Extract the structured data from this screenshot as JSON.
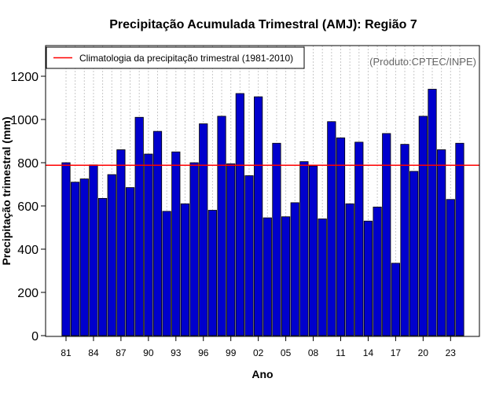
{
  "chart_data": {
    "type": "bar",
    "title": "Precipitação Acumulada Trimestral (AMJ): Região 7",
    "xlabel": "Ano",
    "ylabel": "Precipitação trimestral (mm)",
    "ylim": [
      0,
      1330
    ],
    "yticks": [
      0,
      200,
      400,
      600,
      800,
      1000,
      1200
    ],
    "ytick_labels": [
      "0",
      "200",
      "400",
      "600",
      "800",
      "1000",
      "1200"
    ],
    "categories": [
      "81",
      "82",
      "83",
      "84",
      "85",
      "86",
      "87",
      "88",
      "89",
      "90",
      "91",
      "92",
      "93",
      "94",
      "95",
      "96",
      "97",
      "98",
      "99",
      "00",
      "01",
      "02",
      "03",
      "04",
      "05",
      "06",
      "07",
      "08",
      "09",
      "10",
      "11",
      "12",
      "13",
      "14",
      "15",
      "16",
      "17",
      "18",
      "19",
      "20",
      "21",
      "22",
      "23",
      "24"
    ],
    "xtick_labels": [
      "81",
      "84",
      "87",
      "90",
      "93",
      "96",
      "99",
      "02",
      "05",
      "08",
      "11",
      "14",
      "17",
      "20",
      "23"
    ],
    "values": [
      800,
      710,
      725,
      790,
      635,
      745,
      860,
      685,
      1010,
      840,
      945,
      575,
      850,
      610,
      800,
      980,
      580,
      1015,
      795,
      1120,
      740,
      1105,
      545,
      890,
      550,
      615,
      805,
      785,
      540,
      990,
      915,
      610,
      895,
      530,
      595,
      935,
      335,
      885,
      760,
      1015,
      1140,
      860,
      630,
      890
    ],
    "reference_line": {
      "value": 788,
      "label": "Climatologia da precipitação trimestral (1981-2010)"
    },
    "legend_position": "top-left",
    "credit": "(Produto:CPTEC/INPE)",
    "grid": "vertical dotted",
    "colors": {
      "bar_fill": "#0000cd",
      "bar_edge": "#000000",
      "reference_line": "#ff0000",
      "grid": "#c8c8c8"
    }
  }
}
